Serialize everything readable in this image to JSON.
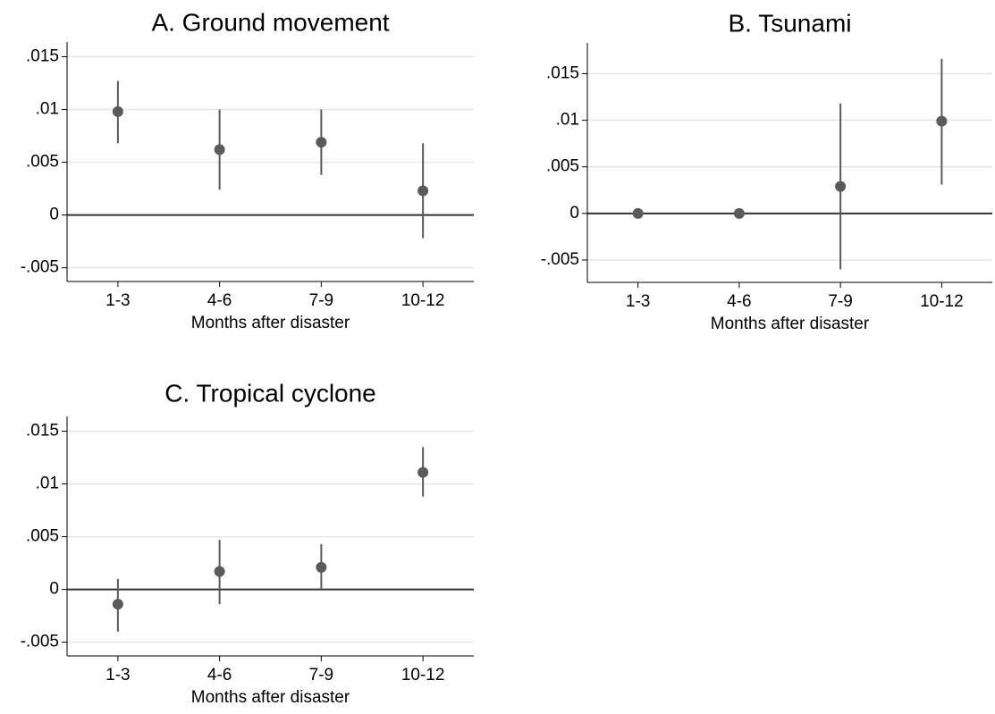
{
  "chart_data": [
    {
      "type": "errorbar",
      "title": "A. Ground movement",
      "x_label": "Months after disaster",
      "categories": [
        "1-3",
        "4-6",
        "7-9",
        "10-12"
      ],
      "values": [
        0.0098,
        0.0062,
        0.0069,
        0.0023
      ],
      "lower": [
        0.0068,
        0.0024,
        0.0038,
        -0.0022
      ],
      "upper": [
        0.0127,
        0.01,
        0.01,
        0.0068
      ],
      "ylim": [
        -0.0063,
        0.0164
      ],
      "yticks": [
        {
          "value": -0.005,
          "label": "-.005"
        },
        0,
        {
          "value": 0.005,
          "label": ".005"
        },
        {
          "value": 0.01,
          "label": ".01"
        },
        {
          "value": 0.015,
          "label": ".015"
        }
      ],
      "grid": true,
      "zero_line": true,
      "color": "#5a5a5a"
    },
    {
      "type": "errorbar",
      "title": "B. Tsunami",
      "x_label": "Months after disaster",
      "categories": [
        "1-3",
        "4-6",
        "7-9",
        "10-12"
      ],
      "values": [
        0,
        0,
        0.0029,
        0.0099
      ],
      "lower": [
        0,
        0,
        -0.006,
        0.0031
      ],
      "upper": [
        0,
        0,
        0.0118,
        0.0166
      ],
      "ylim": [
        -0.0074,
        0.0183
      ],
      "yticks": [
        {
          "value": -0.005,
          "label": "-.005"
        },
        0,
        {
          "value": 0.005,
          "label": ".005"
        },
        {
          "value": 0.01,
          "label": ".01"
        },
        {
          "value": 0.015,
          "label": ".015"
        }
      ],
      "grid": true,
      "zero_line": true,
      "color": "#5a5a5a"
    },
    {
      "type": "errorbar",
      "title": "C. Tropical cyclone",
      "x_label": "Months after disaster",
      "categories": [
        "1-3",
        "4-6",
        "7-9",
        "10-12"
      ],
      "values": [
        -0.0014,
        0.0017,
        0.0021,
        0.0111
      ],
      "lower": [
        -0.004,
        -0.0014,
        0.0,
        0.0088
      ],
      "upper": [
        0.001,
        0.0047,
        0.0043,
        0.0135
      ],
      "ylim": [
        -0.0063,
        0.0164
      ],
      "yticks": [
        {
          "value": -0.005,
          "label": "-.005"
        },
        0,
        {
          "value": 0.005,
          "label": ".005"
        },
        {
          "value": 0.01,
          "label": ".01"
        },
        {
          "value": 0.015,
          "label": ".015"
        }
      ],
      "grid": true,
      "zero_line": true,
      "color": "#5a5a5a"
    }
  ]
}
